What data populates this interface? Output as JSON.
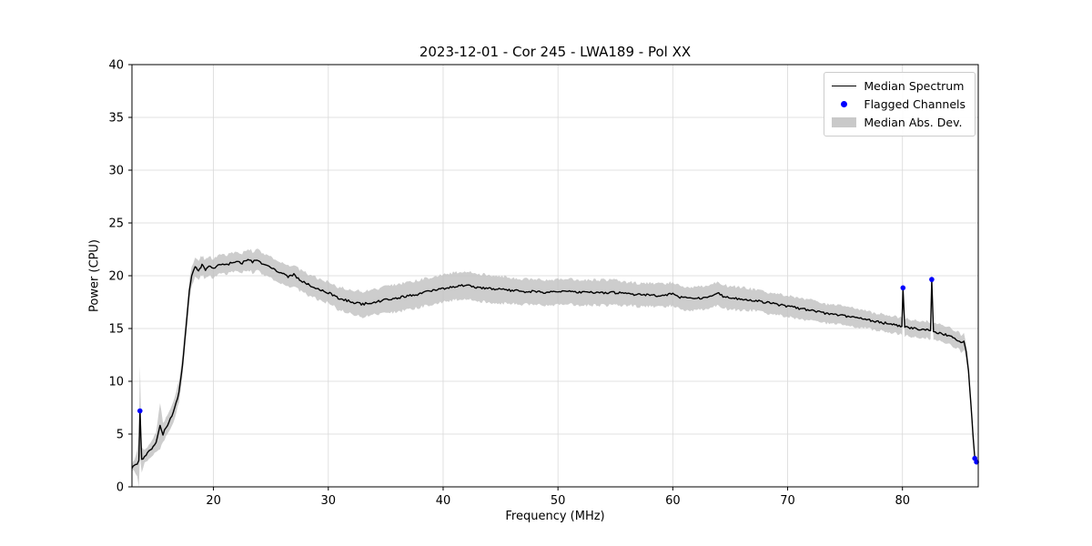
{
  "chart_data": {
    "type": "line",
    "title": "2023-12-01 - Cor 245 - LWA189 - Pol XX",
    "xlabel": "Frequency (MHz)",
    "ylabel": "Power (CPU)",
    "xlim": [
      12.9,
      86.6
    ],
    "ylim": [
      0,
      40
    ],
    "xticks": [
      20,
      30,
      40,
      50,
      60,
      70,
      80
    ],
    "yticks": [
      0,
      5,
      10,
      15,
      20,
      25,
      30,
      35,
      40
    ],
    "grid": true,
    "legend": [
      {
        "label": "Median Spectrum",
        "marker": "line"
      },
      {
        "label": "Flagged Channels",
        "marker": "dot"
      },
      {
        "label": "Median Abs. Dev.",
        "marker": "patch"
      }
    ],
    "colors": {
      "line": "#000000",
      "flagged": "#0000ff",
      "band": "#c0c0c0",
      "grid": "#d9d9d9"
    },
    "median_spectrum": {
      "points": [
        [
          12.9,
          1.8,
          0.3
        ],
        [
          13.1,
          2.0,
          0.5
        ],
        [
          13.35,
          2.2,
          1.2
        ],
        [
          13.5,
          2.5,
          2.5
        ],
        [
          13.6,
          7.2,
          4.3
        ],
        [
          13.75,
          2.6,
          1.2
        ],
        [
          14.0,
          2.9,
          0.6
        ],
        [
          14.5,
          3.5,
          0.7
        ],
        [
          15.0,
          4.2,
          0.9
        ],
        [
          15.35,
          5.8,
          2.2
        ],
        [
          15.6,
          5.0,
          0.9
        ],
        [
          16.0,
          5.9,
          0.9
        ],
        [
          16.5,
          7.0,
          1.0
        ],
        [
          17.0,
          9.0,
          1.0
        ],
        [
          17.3,
          11.5,
          1.0
        ],
        [
          17.6,
          15.0,
          1.0
        ],
        [
          17.9,
          18.6,
          1.0
        ],
        [
          18.1,
          20.0,
          0.9
        ],
        [
          18.4,
          20.9,
          0.9
        ],
        [
          18.7,
          20.5,
          0.9
        ],
        [
          19.0,
          21.0,
          0.9
        ],
        [
          19.3,
          20.6,
          0.9
        ],
        [
          19.6,
          20.9,
          0.9
        ],
        [
          20.0,
          20.7,
          0.9
        ],
        [
          20.4,
          21.0,
          0.9
        ],
        [
          20.8,
          21.2,
          0.9
        ],
        [
          21.2,
          21.0,
          0.9
        ],
        [
          21.6,
          21.3,
          0.9
        ],
        [
          22.0,
          21.4,
          0.9
        ],
        [
          22.5,
          21.2,
          0.9
        ],
        [
          23.0,
          21.6,
          1.0
        ],
        [
          23.4,
          21.3,
          1.0
        ],
        [
          23.8,
          21.5,
          1.0
        ],
        [
          24.2,
          21.2,
          1.0
        ],
        [
          24.6,
          21.0,
          1.0
        ],
        [
          25.0,
          20.8,
          1.0
        ],
        [
          25.5,
          20.5,
          1.0
        ],
        [
          26.0,
          20.2,
          1.0
        ],
        [
          26.5,
          19.9,
          1.0
        ],
        [
          27.0,
          20.1,
          1.0
        ],
        [
          27.5,
          19.6,
          1.0
        ],
        [
          28.0,
          19.3,
          1.0
        ],
        [
          28.5,
          19.0,
          1.0
        ],
        [
          29.0,
          18.8,
          1.0
        ],
        [
          29.5,
          18.6,
          1.0
        ],
        [
          30.0,
          18.4,
          1.0
        ],
        [
          30.5,
          18.1,
          1.0
        ],
        [
          31.0,
          17.8,
          1.1
        ],
        [
          31.5,
          17.7,
          1.1
        ],
        [
          32.0,
          17.5,
          1.1
        ],
        [
          32.5,
          17.4,
          1.2
        ],
        [
          33.0,
          17.3,
          1.2
        ],
        [
          33.5,
          17.4,
          1.2
        ],
        [
          34.0,
          17.5,
          1.2
        ],
        [
          34.5,
          17.6,
          1.2
        ],
        [
          35.0,
          17.7,
          1.3
        ],
        [
          36.0,
          17.9,
          1.3
        ],
        [
          37.0,
          18.1,
          1.3
        ],
        [
          38.0,
          18.3,
          1.3
        ],
        [
          39.0,
          18.6,
          1.3
        ],
        [
          40.0,
          18.8,
          1.3
        ],
        [
          41.0,
          19.0,
          1.3
        ],
        [
          42.0,
          19.1,
          1.3
        ],
        [
          43.0,
          18.9,
          1.3
        ],
        [
          44.0,
          18.8,
          1.3
        ],
        [
          45.0,
          18.7,
          1.3
        ],
        [
          46.0,
          18.6,
          1.2
        ],
        [
          47.0,
          18.5,
          1.2
        ],
        [
          48.0,
          18.5,
          1.2
        ],
        [
          49.0,
          18.4,
          1.2
        ],
        [
          50.0,
          18.5,
          1.2
        ],
        [
          51.0,
          18.5,
          1.2
        ],
        [
          52.0,
          18.4,
          1.2
        ],
        [
          53.0,
          18.4,
          1.2
        ],
        [
          54.0,
          18.4,
          1.2
        ],
        [
          55.0,
          18.4,
          1.2
        ],
        [
          56.0,
          18.3,
          1.1
        ],
        [
          57.0,
          18.2,
          1.1
        ],
        [
          58.0,
          18.2,
          1.1
        ],
        [
          59.0,
          18.1,
          1.1
        ],
        [
          60.0,
          18.3,
          1.1
        ],
        [
          60.5,
          18.0,
          1.1
        ],
        [
          61.0,
          17.9,
          1.1
        ],
        [
          62.0,
          17.8,
          1.1
        ],
        [
          63.0,
          18.0,
          1.1
        ],
        [
          63.5,
          18.2,
          1.1
        ],
        [
          64.0,
          18.3,
          1.1
        ],
        [
          64.5,
          18.0,
          1.1
        ],
        [
          65.0,
          17.9,
          1.1
        ],
        [
          66.0,
          17.8,
          1.1
        ],
        [
          67.0,
          17.7,
          1.0
        ],
        [
          68.0,
          17.5,
          1.0
        ],
        [
          69.0,
          17.3,
          1.0
        ],
        [
          70.0,
          17.1,
          1.0
        ],
        [
          71.0,
          16.9,
          1.0
        ],
        [
          72.0,
          16.7,
          1.0
        ],
        [
          73.0,
          16.5,
          0.9
        ],
        [
          74.0,
          16.3,
          0.9
        ],
        [
          75.0,
          16.2,
          0.9
        ],
        [
          76.0,
          16.0,
          0.9
        ],
        [
          77.0,
          15.8,
          0.8
        ],
        [
          78.0,
          15.6,
          0.8
        ],
        [
          79.0,
          15.4,
          0.8
        ],
        [
          79.95,
          15.2,
          0.8
        ],
        [
          80.05,
          18.8,
          0.8
        ],
        [
          80.2,
          15.1,
          0.8
        ],
        [
          81.0,
          15.0,
          0.8
        ],
        [
          82.0,
          14.9,
          0.8
        ],
        [
          82.45,
          14.8,
          0.8
        ],
        [
          82.55,
          19.6,
          0.8
        ],
        [
          82.7,
          14.7,
          0.8
        ],
        [
          83.0,
          14.6,
          0.8
        ],
        [
          83.5,
          14.5,
          0.8
        ],
        [
          84.0,
          14.3,
          0.8
        ],
        [
          84.4,
          14.1,
          0.8
        ],
        [
          84.8,
          13.9,
          0.8
        ],
        [
          85.1,
          13.6,
          0.8
        ],
        [
          85.35,
          13.8,
          0.8
        ],
        [
          85.55,
          12.8,
          0.7
        ],
        [
          85.75,
          11.0,
          0.6
        ],
        [
          85.95,
          8.0,
          0.5
        ],
        [
          86.15,
          4.8,
          0.4
        ],
        [
          86.3,
          2.8,
          0.3
        ],
        [
          86.45,
          2.3,
          0.3
        ]
      ]
    },
    "flagged_channels": [
      [
        13.6,
        7.2
      ],
      [
        80.05,
        18.85
      ],
      [
        82.55,
        19.65
      ],
      [
        86.3,
        2.7
      ],
      [
        86.45,
        2.35
      ]
    ]
  }
}
